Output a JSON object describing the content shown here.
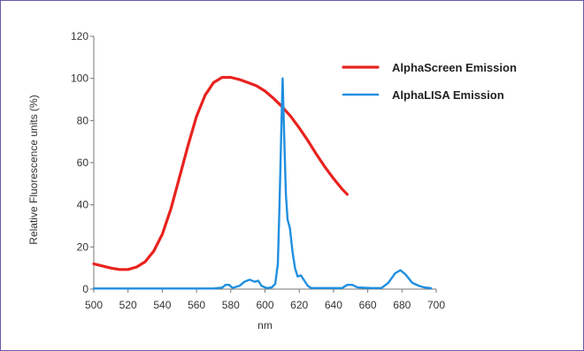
{
  "chart_data": {
    "type": "line",
    "title": "",
    "xlabel": "nm",
    "ylabel": "Relative Fluorescence units (%)",
    "xlim": [
      500,
      700
    ],
    "ylim": [
      0,
      120
    ],
    "x_ticks": [
      "500",
      "520",
      "540",
      "560",
      "580",
      "600",
      "620",
      "640",
      "660",
      "680",
      "700"
    ],
    "y_ticks": [
      "0",
      "20",
      "40",
      "60",
      "80",
      "100",
      "120"
    ],
    "grid": false,
    "legend_position": "top-right",
    "series": [
      {
        "name": "AlphaScreen Emission",
        "color": "#e8231f",
        "points": [
          [
            500,
            12
          ],
          [
            505,
            11
          ],
          [
            510,
            10
          ],
          [
            515,
            9.3
          ],
          [
            520,
            9.3
          ],
          [
            525,
            10.5
          ],
          [
            530,
            13
          ],
          [
            535,
            18
          ],
          [
            540,
            26
          ],
          [
            545,
            38
          ],
          [
            550,
            53
          ],
          [
            555,
            68
          ],
          [
            560,
            82
          ],
          [
            565,
            92
          ],
          [
            570,
            98
          ],
          [
            575,
            100.5
          ],
          [
            580,
            100.5
          ],
          [
            585,
            99.5
          ],
          [
            590,
            98
          ],
          [
            595,
            96.5
          ],
          [
            600,
            94
          ],
          [
            605,
            90.5
          ],
          [
            610,
            86.5
          ],
          [
            615,
            82
          ],
          [
            620,
            76.5
          ],
          [
            625,
            70.5
          ],
          [
            630,
            64
          ],
          [
            635,
            58
          ],
          [
            640,
            52.5
          ],
          [
            645,
            47.5
          ],
          [
            648,
            45
          ]
        ]
      },
      {
        "name": "AlphaLISA Emission",
        "color": "#1f8fe0",
        "points": [
          [
            500,
            0.3
          ],
          [
            570,
            0.3
          ],
          [
            575,
            0.7
          ],
          [
            577,
            2
          ],
          [
            579,
            2
          ],
          [
            581,
            0.6
          ],
          [
            585,
            1.5
          ],
          [
            588,
            3.5
          ],
          [
            591,
            4.5
          ],
          [
            594,
            3.5
          ],
          [
            596,
            4
          ],
          [
            598,
            1.5
          ],
          [
            601,
            0.5
          ],
          [
            604,
            0.8
          ],
          [
            606,
            2.5
          ],
          [
            607.5,
            12
          ],
          [
            608.5,
            40
          ],
          [
            609.5,
            75
          ],
          [
            610.3,
            100
          ],
          [
            611.2,
            72
          ],
          [
            612.2,
            45
          ],
          [
            613.2,
            33
          ],
          [
            614.5,
            29
          ],
          [
            616,
            18
          ],
          [
            617.5,
            10
          ],
          [
            619,
            6
          ],
          [
            621,
            6.5
          ],
          [
            623,
            4
          ],
          [
            625,
            1.5
          ],
          [
            627,
            0.5
          ],
          [
            645,
            0.5
          ],
          [
            648,
            2
          ],
          [
            651,
            2
          ],
          [
            654,
            0.8
          ],
          [
            662,
            0.5
          ],
          [
            668,
            0.5
          ],
          [
            672,
            3
          ],
          [
            676,
            7.5
          ],
          [
            679,
            9
          ],
          [
            682,
            7
          ],
          [
            686,
            3
          ],
          [
            690,
            1.5
          ],
          [
            693,
            0.8
          ],
          [
            697,
            0.4
          ]
        ]
      }
    ]
  }
}
